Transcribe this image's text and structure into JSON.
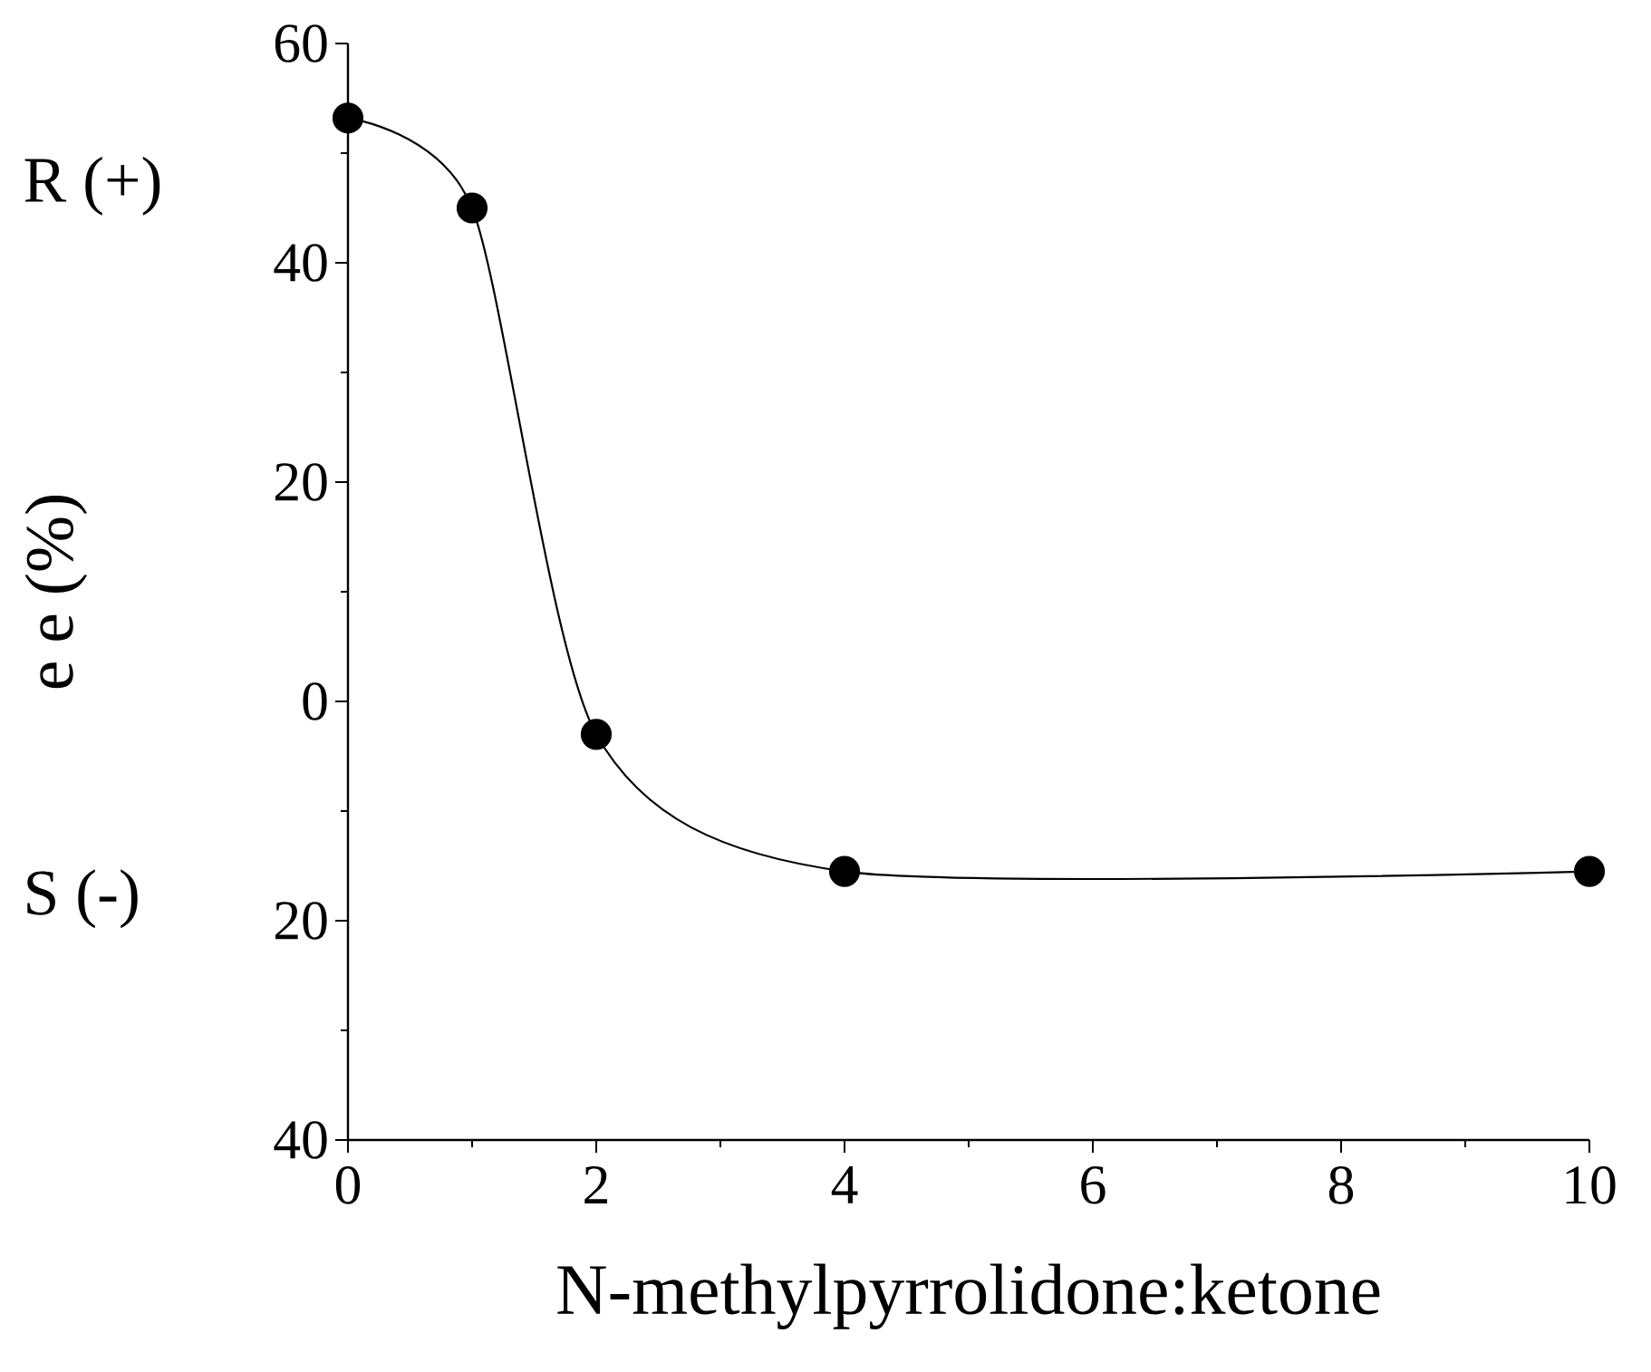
{
  "chart_data": {
    "type": "line",
    "xlabel": "N-methylpyrrolidone:ketone",
    "ylabel": "e e (%)",
    "annotations": [
      "R (+)",
      "S (-)"
    ],
    "x": [
      0,
      1,
      2,
      4,
      10
    ],
    "series": [
      {
        "color": "#000000",
        "values": [
          53.2,
          45,
          -3,
          -15.5,
          -15.5
        ]
      }
    ],
    "xlim": [
      0,
      10
    ],
    "xticks": [
      0,
      2,
      4,
      6,
      8,
      10
    ],
    "ylim": [
      -40,
      60
    ],
    "yticks": [
      {
        "value": -40,
        "label": "40"
      },
      {
        "value": -20,
        "label": "20"
      },
      0,
      20,
      40,
      60
    ],
    "marker": "circle",
    "line_style": "solid"
  }
}
